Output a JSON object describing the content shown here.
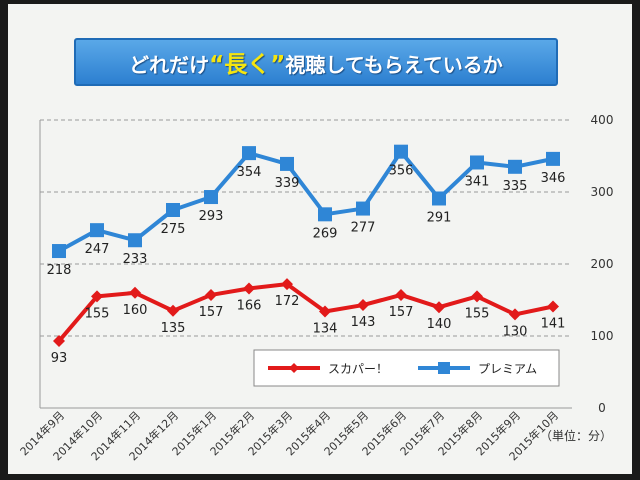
{
  "title": {
    "pre": "どれだけ",
    "highlight": "“長く”",
    "post": "視聴してもらえているか"
  },
  "colors": {
    "red": "#e21a1a",
    "blue": "#2f86d6",
    "banner": "#2c7fd0"
  },
  "unit_note": "（単位：分）",
  "chart_data": {
    "type": "line",
    "categories": [
      "2014年9月",
      "2014年10月",
      "2014年11月",
      "2014年12月",
      "2015年1月",
      "2015年2月",
      "2015年3月",
      "2015年4月",
      "2015年5月",
      "2015年6月",
      "2015年7月",
      "2015年8月",
      "2015年9月",
      "2015年10月"
    ],
    "series": [
      {
        "name": "スカパー！",
        "color": "#e21a1a",
        "marker": "diamond",
        "values": [
          93,
          155,
          160,
          135,
          157,
          166,
          172,
          134,
          143,
          157,
          140,
          155,
          130,
          141
        ]
      },
      {
        "name": "プレミアム",
        "color": "#2f86d6",
        "marker": "square",
        "values": [
          218,
          247,
          233,
          275,
          293,
          354,
          339,
          269,
          277,
          356,
          291,
          341,
          335,
          346
        ]
      }
    ],
    "yticks": [
      0,
      100,
      200,
      300,
      400
    ],
    "ylim": [
      0,
      400
    ],
    "ylabel": "",
    "xlabel": "",
    "grid": "horizontal dashed",
    "legend": "bottom-right"
  }
}
